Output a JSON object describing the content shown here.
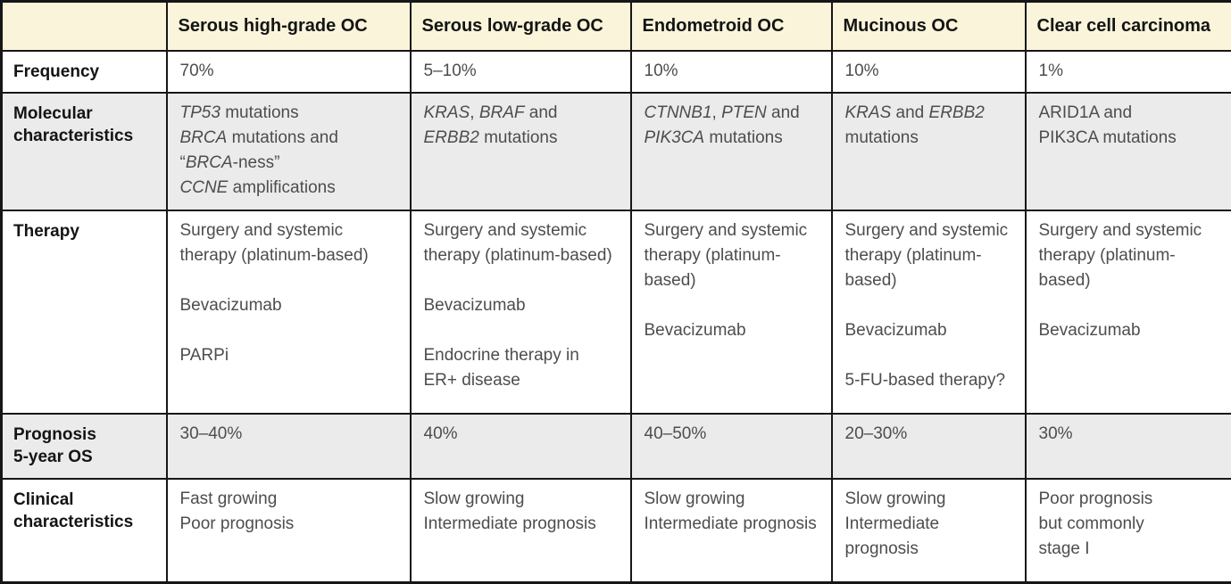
{
  "colors": {
    "header_bg": "#faf4da",
    "shaded_row_bg": "#ebebeb",
    "border": "#161616",
    "body_text": "#4d4d4d",
    "label_text": "#141414"
  },
  "table": {
    "columns": [
      "",
      "Serous high-grade OC",
      "Serous low-grade OC",
      "Endometroid OC",
      "Mucinous OC",
      "Clear cell carcinoma"
    ],
    "rows": [
      {
        "id": "frequency",
        "label_lines": [
          "Frequency"
        ],
        "shaded": false,
        "cells": [
          [
            {
              "segs": [
                {
                  "t": "70%"
                }
              ]
            }
          ],
          [
            {
              "segs": [
                {
                  "t": "5–10%"
                }
              ]
            }
          ],
          [
            {
              "segs": [
                {
                  "t": "10%"
                }
              ]
            }
          ],
          [
            {
              "segs": [
                {
                  "t": "10%"
                }
              ]
            }
          ],
          [
            {
              "segs": [
                {
                  "t": "1%"
                }
              ]
            }
          ]
        ]
      },
      {
        "id": "molecular",
        "label_lines": [
          "Molecular",
          "characteristics"
        ],
        "shaded": true,
        "cells": [
          [
            {
              "segs": [
                {
                  "t": "TP53",
                  "i": true
                },
                {
                  "t": " mutations"
                }
              ]
            },
            {
              "segs": [
                {
                  "t": "BRCA",
                  "i": true
                },
                {
                  "t": " mutations and"
                }
              ]
            },
            {
              "segs": [
                {
                  "t": "“"
                },
                {
                  "t": "BRCA",
                  "i": true
                },
                {
                  "t": "-ness”"
                }
              ]
            },
            {
              "segs": [
                {
                  "t": "CCNE",
                  "i": true
                },
                {
                  "t": " amplifications"
                }
              ]
            }
          ],
          [
            {
              "segs": [
                {
                  "t": "KRAS",
                  "i": true
                },
                {
                  "t": ", "
                },
                {
                  "t": "BRAF",
                  "i": true
                },
                {
                  "t": " and"
                }
              ]
            },
            {
              "segs": [
                {
                  "t": "ERBB2",
                  "i": true
                },
                {
                  "t": " mutations"
                }
              ]
            }
          ],
          [
            {
              "segs": [
                {
                  "t": "CTNNB1",
                  "i": true
                },
                {
                  "t": ", "
                },
                {
                  "t": "PTEN",
                  "i": true
                },
                {
                  "t": " and"
                }
              ]
            },
            {
              "segs": [
                {
                  "t": "PIK3CA",
                  "i": true
                },
                {
                  "t": " mutations"
                }
              ]
            }
          ],
          [
            {
              "segs": [
                {
                  "t": "KRAS",
                  "i": true
                },
                {
                  "t": " and "
                },
                {
                  "t": "ERBB2",
                  "i": true
                }
              ]
            },
            {
              "segs": [
                {
                  "t": "mutations"
                }
              ]
            }
          ],
          [
            {
              "segs": [
                {
                  "t": "ARID1A and"
                }
              ]
            },
            {
              "segs": [
                {
                  "t": "PIK3CA mutations"
                }
              ]
            }
          ]
        ]
      },
      {
        "id": "therapy",
        "label_lines": [
          "Therapy"
        ],
        "shaded": false,
        "cells": [
          [
            {
              "segs": [
                {
                  "t": "Surgery and systemic therapy (platinum-based)"
                }
              ]
            },
            {
              "gap": true,
              "segs": [
                {
                  "t": "Bevacizumab"
                }
              ]
            },
            {
              "gap": true,
              "segs": [
                {
                  "t": "PARPi"
                }
              ]
            }
          ],
          [
            {
              "segs": [
                {
                  "t": "Surgery and systemic therapy (platinum-based)"
                }
              ]
            },
            {
              "gap": true,
              "segs": [
                {
                  "t": "Bevacizumab"
                }
              ]
            },
            {
              "gap": true,
              "segs": [
                {
                  "t": "Endocrine therapy in ER+ disease"
                }
              ]
            }
          ],
          [
            {
              "segs": [
                {
                  "t": "Surgery and systemic therapy (platinum-based)"
                }
              ]
            },
            {
              "gap": true,
              "segs": [
                {
                  "t": "Bevacizumab"
                }
              ]
            }
          ],
          [
            {
              "segs": [
                {
                  "t": "Surgery and systemic therapy (platinum-based)"
                }
              ]
            },
            {
              "gap": true,
              "segs": [
                {
                  "t": "Bevacizumab"
                }
              ]
            },
            {
              "gap": true,
              "segs": [
                {
                  "t": "5-FU-based therapy?"
                }
              ]
            }
          ],
          [
            {
              "segs": [
                {
                  "t": "Surgery and systemic therapy (platinum-based)"
                }
              ]
            },
            {
              "gap": true,
              "segs": [
                {
                  "t": "Bevacizumab"
                }
              ]
            }
          ]
        ]
      },
      {
        "id": "prognosis",
        "label_lines": [
          "Prognosis",
          "5-year OS"
        ],
        "shaded": true,
        "cells": [
          [
            {
              "segs": [
                {
                  "t": "30–40%"
                }
              ]
            }
          ],
          [
            {
              "segs": [
                {
                  "t": "40%"
                }
              ]
            }
          ],
          [
            {
              "segs": [
                {
                  "t": "40–50%"
                }
              ]
            }
          ],
          [
            {
              "segs": [
                {
                  "t": "20–30%"
                }
              ]
            }
          ],
          [
            {
              "segs": [
                {
                  "t": "30%"
                }
              ]
            }
          ]
        ]
      },
      {
        "id": "clinical",
        "label_lines": [
          "Clinical",
          "characteristics"
        ],
        "shaded": false,
        "cells": [
          [
            {
              "segs": [
                {
                  "t": "Fast growing"
                }
              ]
            },
            {
              "segs": [
                {
                  "t": "Poor prognosis"
                }
              ]
            }
          ],
          [
            {
              "segs": [
                {
                  "t": "Slow growing"
                }
              ]
            },
            {
              "segs": [
                {
                  "t": "Intermediate prognosis"
                }
              ]
            }
          ],
          [
            {
              "segs": [
                {
                  "t": "Slow growing"
                }
              ]
            },
            {
              "segs": [
                {
                  "t": "Intermediate prognosis"
                }
              ]
            }
          ],
          [
            {
              "segs": [
                {
                  "t": "Slow growing"
                }
              ]
            },
            {
              "segs": [
                {
                  "t": "Intermediate prognosis"
                }
              ]
            }
          ],
          [
            {
              "segs": [
                {
                  "t": "Poor prognosis"
                }
              ]
            },
            {
              "segs": [
                {
                  "t": "but commonly"
                }
              ]
            },
            {
              "segs": [
                {
                  "t": "stage I"
                }
              ]
            }
          ]
        ]
      }
    ]
  }
}
